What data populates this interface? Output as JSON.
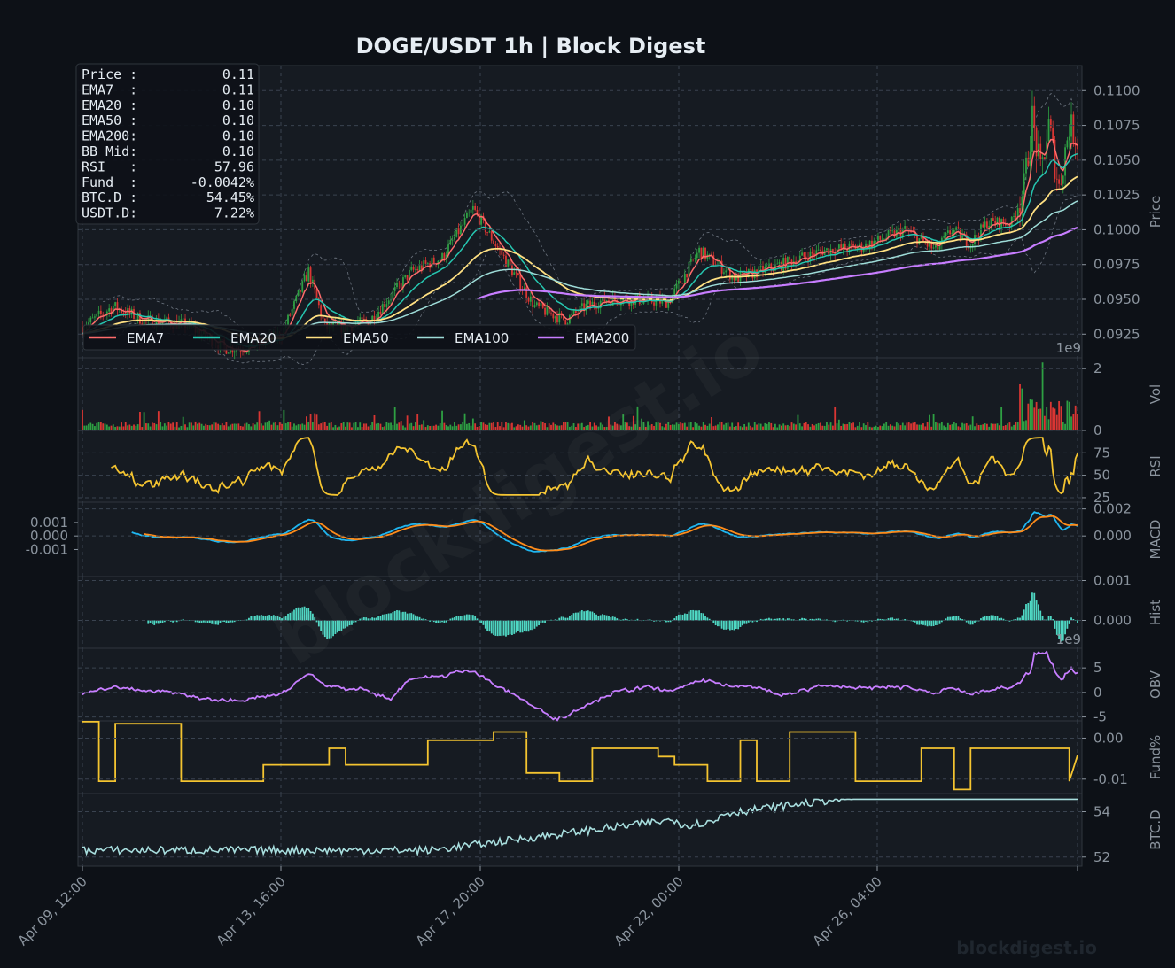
{
  "title": "DOGE/USDT  1h  |  Block Digest",
  "watermark": "blockdigest.io",
  "footer_watermark": "blockdigest.io",
  "colors": {
    "background": "#0d1117",
    "panel": "#161b22",
    "grid": "#30363d",
    "up": "#2ea043",
    "down": "#da3633",
    "ema7": "#ff6b6b",
    "ema20": "#26c6b0",
    "ema50": "#ffe082",
    "ema100": "#9edcd8",
    "ema200": "#c77dff",
    "rsi": "#f4c430",
    "macd": "#1fb6f0",
    "signal": "#ff8c1a",
    "hist": "#4fd8c4",
    "obv": "#c77dff",
    "funding": "#f4c430",
    "btcd": "#a8dede"
  },
  "info_box": [
    {
      "label": "Price :",
      "value": "0.11"
    },
    {
      "label": "EMA7  :",
      "value": "0.11"
    },
    {
      "label": "EMA20 :",
      "value": "0.10"
    },
    {
      "label": "EMA50 :",
      "value": "0.10"
    },
    {
      "label": "EMA200:",
      "value": "0.10"
    },
    {
      "label": "BB Mid:",
      "value": "0.10"
    },
    {
      "label": "RSI   :",
      "value": "57.96"
    },
    {
      "label": "Fund  :",
      "value": "-0.0042%"
    },
    {
      "label": "BTC.D :",
      "value": "54.45%"
    },
    {
      "label": "USDT.D:",
      "value": "7.22%"
    }
  ],
  "chart_data": {
    "type": "line",
    "x_ticks": [
      "Apr 09, 12:00",
      "Apr 13, 16:00",
      "Apr 17, 20:00",
      "Apr 22, 00:00",
      "Apr 26, 04:00"
    ],
    "x_range_hours": [
      0,
      484
    ],
    "panels": [
      {
        "id": "price",
        "ylabel": "Price",
        "ylim": [
          0.0908,
          0.1118
        ],
        "yticks": [
          "0.0925",
          "0.0950",
          "0.0975",
          "0.1000",
          "0.1025",
          "0.1050",
          "0.1075",
          "0.1100"
        ],
        "legend": [
          "EMA7",
          "EMA20",
          "EMA50",
          "EMA100",
          "EMA200"
        ],
        "legend_position": "lower-left",
        "price_path_hours": [
          0,
          15,
          30,
          50,
          70,
          80,
          97,
          110,
          118,
          128,
          140,
          160,
          175,
          190,
          205,
          220,
          235,
          245,
          255,
          268,
          285,
          300,
          318,
          340,
          360,
          380,
          400,
          415,
          423,
          432,
          440,
          452,
          458,
          462,
          466,
          470,
          475,
          480,
          484
        ],
        "price_path_values": [
          0.093,
          0.0945,
          0.0935,
          0.0932,
          0.0915,
          0.0915,
          0.0925,
          0.097,
          0.093,
          0.093,
          0.0935,
          0.097,
          0.098,
          0.1015,
          0.098,
          0.0945,
          0.0935,
          0.0945,
          0.095,
          0.095,
          0.0948,
          0.0985,
          0.0965,
          0.0975,
          0.0985,
          0.0988,
          0.1,
          0.0985,
          0.1,
          0.099,
          0.1005,
          0.1005,
          0.103,
          0.108,
          0.104,
          0.1075,
          0.103,
          0.1075,
          0.1065
        ],
        "ema200_start_hour": 192
      },
      {
        "id": "vol",
        "ylabel": "Vol",
        "ylim": [
          0,
          2.35
        ],
        "yticks": [
          "0",
          "2"
        ],
        "exponent": "1e9"
      },
      {
        "id": "rsi",
        "ylabel": "RSI",
        "ylim": [
          20,
          100
        ],
        "yticks": [
          "25",
          "50",
          "75"
        ]
      },
      {
        "id": "macd",
        "ylabel": "MACD",
        "ylim": [
          -0.003,
          0.0025
        ],
        "yticks_right": [
          "0.000",
          "0.002"
        ],
        "yticks_left": [
          "0.001",
          "0.000",
          "-0.001"
        ],
        "series": [
          "MACD",
          "Signal"
        ]
      },
      {
        "id": "hist",
        "ylabel": "Hist",
        "ylim": [
          -0.0007,
          0.0011
        ],
        "yticks": [
          "0.000",
          "0.001"
        ]
      },
      {
        "id": "obv",
        "ylabel": "OBV",
        "ylim": [
          -5.8,
          9.0
        ],
        "yticks": [
          "-5",
          "0",
          "5"
        ],
        "exponent": "1e9"
      },
      {
        "id": "fund",
        "ylabel": "Fund%",
        "ylim": [
          -0.0135,
          0.0042
        ],
        "yticks": [
          "-0.01",
          "0.00"
        ]
      },
      {
        "id": "btcd",
        "ylabel": "BTC.D",
        "ylim": [
          51.6,
          54.8
        ],
        "yticks": [
          "52",
          "54"
        ]
      }
    ]
  }
}
